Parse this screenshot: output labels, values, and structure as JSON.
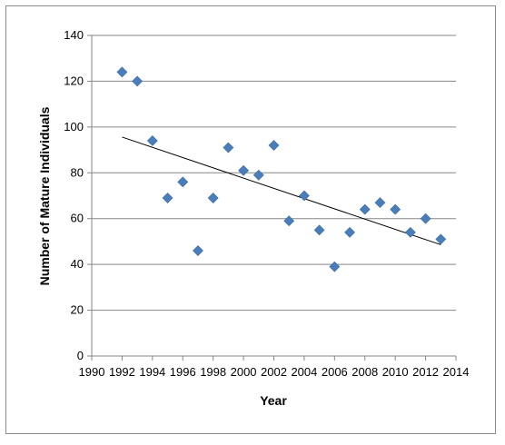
{
  "chart_data": {
    "type": "scatter",
    "title": "",
    "xlabel": "Year",
    "ylabel": "Number of Mature Individuals",
    "xlim": [
      1990,
      2014
    ],
    "ylim": [
      0,
      140
    ],
    "x_ticks": [
      "1990",
      "1992",
      "1994",
      "1996",
      "1998",
      "2000",
      "2002",
      "2004",
      "2006",
      "2008",
      "2010",
      "2012",
      "2014"
    ],
    "y_ticks": [
      "0",
      "20",
      "40",
      "60",
      "80",
      "100",
      "120",
      "140"
    ],
    "grid": "horizontal",
    "legend": "none",
    "marker_color": "#4a7ebb",
    "trendline_color": "#000000",
    "series": [
      {
        "x": [
          1992,
          1993,
          1994,
          1995,
          1996,
          1997,
          1998,
          1999,
          2000,
          2001,
          2002,
          2003,
          2004,
          2005,
          2006,
          2007,
          2008,
          2009,
          2010,
          2011,
          2012,
          2013
        ],
        "y": [
          124,
          120,
          94,
          69,
          76,
          46,
          69,
          91,
          81,
          79,
          92,
          59,
          70,
          55,
          39,
          54,
          64,
          67,
          64,
          54,
          60,
          51
        ]
      }
    ],
    "trendline": {
      "type": "linear",
      "x": [
        1992,
        2013
      ],
      "y": [
        95.6,
        48.6
      ]
    }
  }
}
